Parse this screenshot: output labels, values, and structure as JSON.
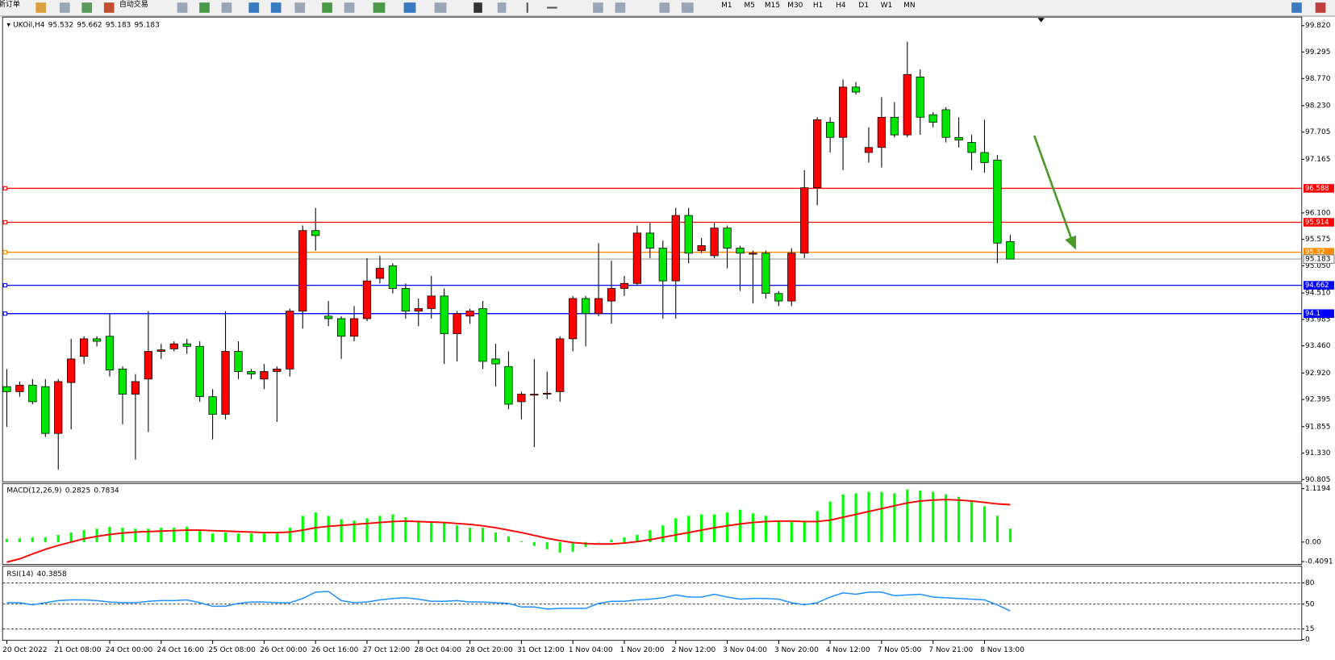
{
  "toolbar": {
    "buttons": [
      "新订单",
      "自动交易"
    ],
    "timeframes": [
      "M1",
      "M5",
      "M15",
      "M30",
      "H1",
      "H4",
      "D1",
      "W1",
      "MN"
    ]
  },
  "chart_data": [
    {
      "type": "candlestick",
      "title": "UKOil,H4",
      "categories": [
        "20 Oct 2022",
        null,
        null,
        null,
        "21 Oct 08:00",
        null,
        null,
        null,
        "24 Oct 00:00",
        null,
        null,
        null,
        "24 Oct 16:00",
        null,
        null,
        null,
        "25 Oct 08:00",
        null,
        null,
        null,
        "26 Oct 00:00",
        null,
        null,
        null,
        "26 Oct 16:00",
        null,
        null,
        null,
        "27 Oct 12:00",
        null,
        null,
        null,
        "28 Oct 04:00",
        null,
        null,
        null,
        "28 Oct 20:00",
        null,
        null,
        null,
        "31 Oct 12:00",
        null,
        null,
        null,
        "1 Nov 04:00",
        null,
        null,
        null,
        "1 Nov 20:00",
        null,
        null,
        null,
        "2 Nov 12:00",
        null,
        null,
        null,
        "3 Nov 04:00",
        null,
        null,
        null,
        "3 Nov 20:00",
        null,
        null,
        null,
        "4 Nov 12:00",
        null,
        null,
        null,
        "7 Nov 05:00",
        null,
        null,
        null,
        "7 Nov 21:00",
        null,
        null,
        null,
        "8 Nov 13:00",
        null,
        null
      ],
      "open": [
        92.65,
        92.55,
        92.68,
        92.65,
        91.72,
        92.73,
        93.25,
        93.6,
        93.65,
        93.0,
        92.5,
        92.8,
        93.35,
        93.4,
        93.5,
        93.45,
        92.45,
        92.1,
        93.35,
        92.95,
        92.8,
        92.95,
        93.0,
        94.15,
        95.75,
        94.05,
        94.0,
        93.65,
        94.0,
        94.8,
        95.05,
        94.6,
        94.15,
        94.2,
        94.45,
        93.7,
        94.05,
        94.2,
        93.2,
        93.05,
        92.35,
        92.48,
        92.5,
        92.55,
        93.6,
        94.4,
        94.1,
        94.35,
        94.6,
        94.7,
        95.7,
        95.4,
        94.75,
        96.05,
        95.35,
        95.25,
        95.8,
        95.4,
        95.28,
        95.3,
        94.5,
        94.35,
        95.3,
        96.6,
        97.9,
        97.6,
        98.6,
        97.3,
        97.4,
        98.0,
        97.65,
        98.8,
        98.05,
        98.15,
        97.6,
        97.5,
        97.3,
        97.15,
        95.532
      ],
      "high": [
        93.0,
        92.75,
        92.8,
        92.8,
        92.8,
        93.6,
        93.65,
        93.65,
        94.1,
        93.05,
        92.9,
        94.15,
        93.5,
        93.55,
        93.6,
        93.55,
        92.6,
        94.15,
        93.55,
        93.0,
        93.1,
        93.05,
        94.2,
        95.85,
        96.2,
        94.35,
        94.05,
        94.25,
        95.2,
        95.25,
        95.1,
        94.7,
        94.4,
        94.85,
        94.6,
        94.15,
        94.2,
        94.35,
        93.5,
        93.35,
        92.55,
        93.2,
        92.95,
        93.65,
        94.45,
        94.45,
        95.5,
        95.15,
        94.85,
        95.85,
        95.9,
        95.55,
        96.2,
        96.2,
        95.6,
        95.9,
        95.85,
        95.45,
        95.35,
        95.35,
        94.55,
        95.4,
        96.95,
        98.0,
        98.0,
        98.75,
        98.7,
        97.8,
        98.4,
        98.3,
        99.5,
        98.95,
        98.1,
        98.2,
        98.0,
        97.65,
        97.95,
        97.25,
        95.662
      ],
      "low": [
        91.85,
        92.45,
        92.3,
        91.65,
        91.0,
        91.8,
        93.1,
        93.45,
        92.85,
        91.9,
        91.2,
        91.75,
        93.2,
        93.35,
        93.3,
        92.35,
        91.6,
        92.0,
        92.8,
        92.8,
        92.6,
        91.95,
        92.85,
        93.8,
        95.35,
        93.85,
        93.2,
        93.55,
        93.95,
        94.7,
        94.5,
        94.0,
        93.85,
        94.0,
        93.1,
        93.15,
        93.9,
        93.0,
        92.65,
        92.2,
        92.0,
        91.45,
        92.4,
        92.35,
        93.35,
        93.45,
        94.05,
        93.9,
        94.45,
        94.65,
        95.2,
        94.0,
        94.0,
        95.1,
        95.3,
        95.2,
        95.0,
        94.55,
        94.3,
        94.4,
        94.25,
        94.25,
        95.2,
        96.25,
        97.3,
        96.95,
        98.45,
        97.1,
        97.0,
        97.6,
        97.6,
        97.65,
        97.8,
        97.5,
        97.4,
        96.95,
        96.9,
        95.1,
        95.183
      ],
      "close": [
        92.55,
        92.68,
        92.35,
        91.72,
        92.75,
        93.2,
        93.6,
        93.55,
        92.98,
        92.5,
        92.75,
        93.35,
        93.38,
        93.5,
        93.45,
        92.45,
        92.1,
        93.35,
        92.95,
        92.9,
        92.95,
        93.0,
        94.15,
        95.75,
        95.65,
        94.0,
        93.65,
        94.0,
        94.75,
        95.0,
        94.6,
        94.15,
        94.2,
        94.45,
        93.7,
        94.1,
        94.15,
        93.15,
        93.1,
        92.3,
        92.5,
        92.5,
        92.52,
        93.6,
        94.4,
        94.1,
        94.4,
        94.6,
        94.7,
        95.7,
        95.4,
        94.75,
        96.05,
        95.3,
        95.45,
        95.8,
        95.4,
        95.3,
        95.3,
        94.5,
        94.35,
        95.3,
        96.6,
        97.95,
        97.6,
        98.6,
        98.5,
        97.4,
        98.0,
        97.65,
        98.85,
        98.0,
        97.9,
        97.6,
        97.55,
        97.3,
        97.1,
        95.5,
        95.183
      ],
      "up_color": "#ff0000",
      "down_color": "#00e600",
      "ylim": [
        90.76,
        99.99
      ],
      "yticks": [
        {
          "value": 99.82,
          "label": "99.820"
        },
        {
          "value": 99.295,
          "label": "99.295"
        },
        {
          "value": 98.77,
          "label": "98.770"
        },
        {
          "value": 98.23,
          "label": "98.230"
        },
        {
          "value": 97.705,
          "label": "97.705"
        },
        {
          "value": 97.165,
          "label": "97.165"
        },
        {
          "value": 96.1,
          "label": "96.100"
        },
        {
          "value": 95.575,
          "label": "95.575"
        },
        {
          "value": 95.05,
          "label": "95.050"
        },
        {
          "value": 94.51,
          "label": "94.510"
        },
        {
          "value": 93.985,
          "label": "93.985"
        },
        {
          "value": 93.46,
          "label": "93.460"
        },
        {
          "value": 92.92,
          "label": "92.920"
        },
        {
          "value": 92.395,
          "label": "92.395"
        },
        {
          "value": 91.855,
          "label": "91.855"
        },
        {
          "value": 91.33,
          "label": "91.330"
        },
        {
          "value": 90.805,
          "label": "90.805"
        }
      ],
      "levels": [
        {
          "value": 96.588,
          "color": "#ff0000"
        },
        {
          "value": 95.914,
          "color": "#ff0000"
        },
        {
          "value": 95.32,
          "color": "#ff8c00"
        },
        {
          "value": 94.662,
          "color": "#0000ff"
        },
        {
          "value": 94.1,
          "color": "#0000ff"
        }
      ],
      "current_price": {
        "value": 95.183,
        "color": "#808080"
      }
    },
    {
      "type": "macd",
      "title": "MACD(12,26,9)",
      "series": [
        {
          "name": "MACD",
          "color": "#00ff00",
          "values": [
            0.07,
            0.08,
            0.1,
            0.1,
            0.15,
            0.2,
            0.25,
            0.28,
            0.32,
            0.3,
            0.28,
            0.28,
            0.3,
            0.3,
            0.32,
            0.25,
            0.18,
            0.2,
            0.18,
            0.18,
            0.18,
            0.18,
            0.3,
            0.55,
            0.62,
            0.55,
            0.48,
            0.45,
            0.5,
            0.55,
            0.58,
            0.52,
            0.45,
            0.4,
            0.42,
            0.35,
            0.3,
            0.3,
            0.2,
            0.12,
            0.02,
            -0.08,
            -0.15,
            -0.22,
            -0.2,
            -0.1,
            0.0,
            0.05,
            0.1,
            0.15,
            0.25,
            0.35,
            0.5,
            0.55,
            0.58,
            0.58,
            0.62,
            0.68,
            0.6,
            0.55,
            0.45,
            0.42,
            0.45,
            0.65,
            0.85,
            1.0,
            1.02,
            1.05,
            1.05,
            1.02,
            1.1,
            1.08,
            1.05,
            1.0,
            0.95,
            0.85,
            0.75,
            0.55,
            0.2825
          ]
        },
        {
          "name": "Signal",
          "color": "#ff0000",
          "values": [
            -0.42,
            -0.35,
            -0.25,
            -0.15,
            -0.07,
            0.0,
            0.07,
            0.12,
            0.16,
            0.19,
            0.21,
            0.22,
            0.23,
            0.24,
            0.25,
            0.25,
            0.24,
            0.23,
            0.22,
            0.21,
            0.2,
            0.2,
            0.21,
            0.25,
            0.3,
            0.33,
            0.35,
            0.37,
            0.39,
            0.41,
            0.43,
            0.44,
            0.43,
            0.42,
            0.41,
            0.39,
            0.37,
            0.34,
            0.3,
            0.25,
            0.2,
            0.14,
            0.08,
            0.03,
            -0.01,
            -0.03,
            -0.04,
            -0.04,
            -0.02,
            0.01,
            0.05,
            0.1,
            0.15,
            0.2,
            0.25,
            0.3,
            0.34,
            0.38,
            0.41,
            0.43,
            0.44,
            0.44,
            0.43,
            0.43,
            0.46,
            0.52,
            0.58,
            0.64,
            0.7,
            0.76,
            0.82,
            0.86,
            0.88,
            0.89,
            0.88,
            0.86,
            0.83,
            0.8,
            0.7834
          ]
        }
      ],
      "ylim": [
        -0.469,
        1.227
      ],
      "yticks": [
        {
          "value": 1.1194,
          "label": "1.1194"
        },
        {
          "value": 0,
          "label": "0.00"
        },
        {
          "value": -0.4091,
          "label": "-0.4091"
        }
      ]
    },
    {
      "type": "line",
      "title": "RSI(14)",
      "series": [
        {
          "name": "RSI",
          "color": "#1e90ff",
          "values": [
            52,
            52,
            49,
            52,
            55,
            56,
            56,
            55,
            53,
            52,
            52,
            54,
            55,
            55,
            56,
            52,
            47,
            47,
            51,
            53,
            53,
            52,
            52,
            58,
            67,
            68,
            55,
            52,
            53,
            56,
            58,
            59,
            57,
            54,
            54,
            55,
            53,
            53,
            52,
            51,
            46,
            46,
            43,
            44,
            44,
            44,
            51,
            54,
            54,
            56,
            57,
            59,
            63,
            60,
            60,
            64,
            60,
            57,
            58,
            58,
            57,
            52,
            49,
            52,
            60,
            66,
            64,
            67,
            67,
            62,
            63,
            64,
            60,
            59,
            58,
            57,
            56,
            49,
            40.3858
          ]
        }
      ],
      "ylim": [
        0,
        100
      ],
      "yticks": [
        80,
        50,
        15,
        0
      ],
      "levels": [
        80,
        50,
        15
      ]
    }
  ]
}
